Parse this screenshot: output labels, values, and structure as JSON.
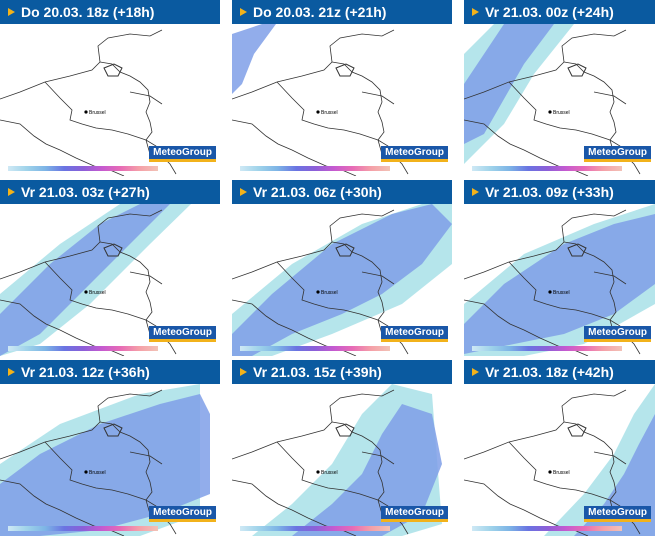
{
  "panels": [
    {
      "label": "Do 20.03. 18z (+18h)",
      "coverage": 0
    },
    {
      "label": "Do 20.03. 21z (+21h)",
      "coverage": 1
    },
    {
      "label": "Vr 21.03. 00z (+24h)",
      "coverage": 2
    },
    {
      "label": "Vr 21.03. 03z (+27h)",
      "coverage": 3
    },
    {
      "label": "Vr 21.03. 06z (+30h)",
      "coverage": 4
    },
    {
      "label": "Vr 21.03. 09z (+33h)",
      "coverage": 5
    },
    {
      "label": "Vr 21.03. 12z (+36h)",
      "coverage": 6
    },
    {
      "label": "Vr 21.03. 15z (+39h)",
      "coverage": 7
    },
    {
      "label": "Vr 21.03. 18z (+42h)",
      "coverage": 8
    }
  ],
  "city_label": "Brussel",
  "logo_text": "MeteoGroup",
  "colors": {
    "header_bg": "#0a5aa0",
    "header_marker": "#f2b21b",
    "precip_light": "#a8e0e8",
    "precip_medium": "#7f9fe8",
    "precip_heavy": "#6a6fdf",
    "border_line": "#333333"
  }
}
